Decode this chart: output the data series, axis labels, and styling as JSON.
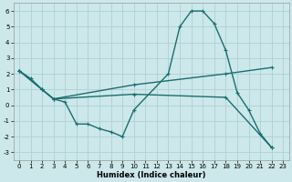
{
  "bg_color": "#cce8eb",
  "grid_color": "#b0d0d4",
  "line_color": "#1a6e6e",
  "line_width": 1.0,
  "marker": "+",
  "markersize": 3,
  "markeredgewidth": 0.8,
  "xlabel": "Humidex (Indice chaleur)",
  "xlabel_fontsize": 6,
  "xlabel_bold": true,
  "xlim": [
    -0.5,
    23.5
  ],
  "ylim": [
    -3.5,
    6.5
  ],
  "yticks": [
    -3,
    -2,
    -1,
    0,
    1,
    2,
    3,
    4,
    5,
    6
  ],
  "xticks": [
    0,
    1,
    2,
    3,
    4,
    5,
    6,
    7,
    8,
    9,
    10,
    11,
    12,
    13,
    14,
    15,
    16,
    17,
    18,
    19,
    20,
    21,
    22,
    23
  ],
  "tick_fontsize": 5,
  "series1": [
    [
      0,
      2.2
    ],
    [
      1,
      1.7
    ],
    [
      2,
      1.0
    ],
    [
      3,
      0.4
    ],
    [
      4,
      0.2
    ],
    [
      5,
      -1.2
    ],
    [
      6,
      -1.2
    ],
    [
      7,
      -1.5
    ],
    [
      8,
      -1.7
    ],
    [
      9,
      -2.0
    ],
    [
      10,
      -0.3
    ],
    [
      13,
      2.0
    ],
    [
      14,
      5.0
    ],
    [
      15,
      6.0
    ],
    [
      16,
      6.0
    ],
    [
      17,
      5.2
    ],
    [
      18,
      3.5
    ],
    [
      19,
      0.8
    ],
    [
      20,
      -0.3
    ],
    [
      21,
      -1.8
    ],
    [
      22,
      -2.7
    ]
  ],
  "series2": [
    [
      0,
      2.2
    ],
    [
      2,
      1.0
    ],
    [
      3,
      0.4
    ],
    [
      10,
      1.3
    ],
    [
      18,
      2.0
    ],
    [
      22,
      2.4
    ]
  ],
  "series3": [
    [
      0,
      2.2
    ],
    [
      2,
      1.0
    ],
    [
      3,
      0.4
    ],
    [
      10,
      0.7
    ],
    [
      18,
      0.5
    ],
    [
      22,
      -2.7
    ]
  ]
}
